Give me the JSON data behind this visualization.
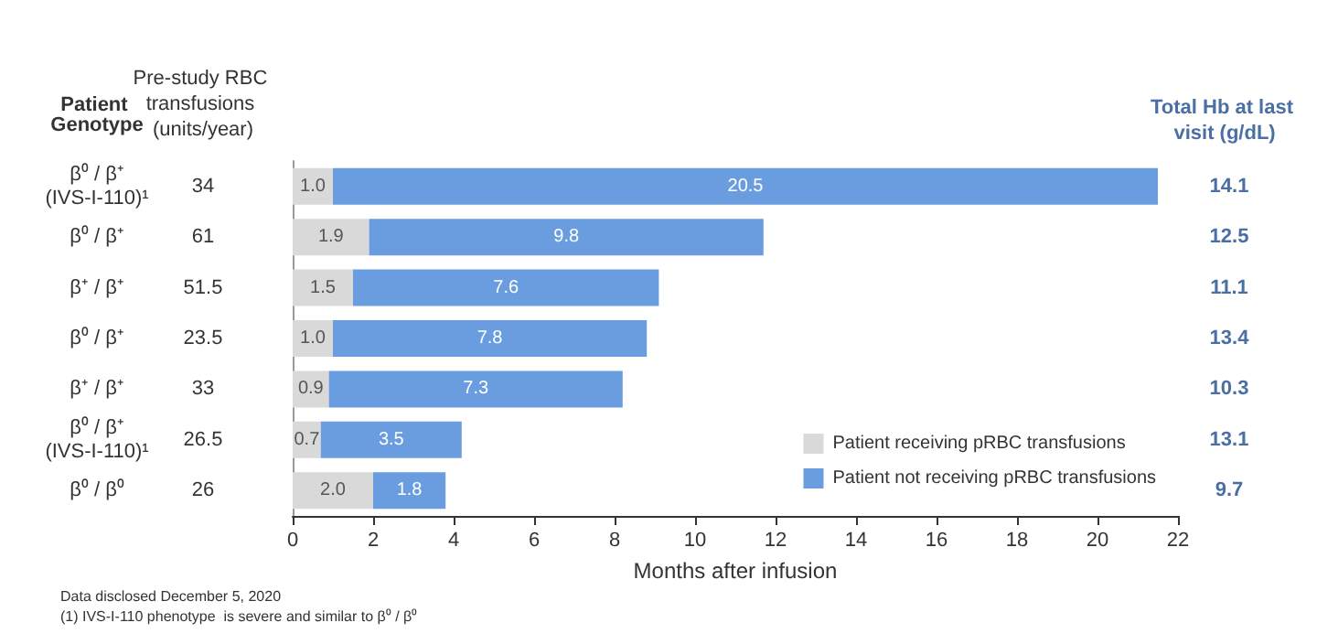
{
  "chart_data": {
    "type": "bar",
    "orientation": "horizontal",
    "stacked": true,
    "ylabel": "Patient Genotype",
    "y2label": "Total Hb at last visit (g/dL)",
    "xlabel": "Months after infusion",
    "categories": [
      "β⁰ / β⁺\n(IVS-I-110)¹",
      "β⁰ / β⁺",
      "β⁺ / β⁺",
      "β⁰ / β⁺",
      "β⁺ / β⁺",
      "β⁰ / β⁺\n(IVS-I-110)¹",
      "β⁰ / β⁰"
    ],
    "y_categories": [
      "34",
      "61",
      "51.5",
      "23.5",
      "33",
      "26.5",
      "26"
    ],
    "y2_categories": [
      "14.1",
      "12.5",
      "11.1",
      "13.4",
      "10.3",
      "13.1",
      "9.7"
    ],
    "series": [
      {
        "name": "Patient receiving pRBC transfusions",
        "color": "#d9d9d9",
        "values": [
          1.0,
          1.9,
          1.5,
          1.0,
          0.9,
          0.7,
          2.0
        ],
        "value_labels": [
          "1.0",
          "1.9",
          "1.5",
          "1.0",
          "0.9",
          "0.7",
          "2.0"
        ]
      },
      {
        "name": "Patient not receiving pRBC transfusions",
        "color": "#6a9de0",
        "values": [
          20.5,
          9.8,
          7.6,
          7.8,
          7.3,
          3.5,
          1.8
        ],
        "value_labels": [
          "20.5",
          "9.8",
          "7.6",
          "7.8",
          "7.3",
          "3.5",
          "1.8"
        ]
      }
    ],
    "xlim": [
      0,
      22
    ],
    "xticks": [
      0,
      2,
      4,
      6,
      8,
      10,
      12,
      14,
      16,
      18,
      20,
      22
    ],
    "legend": "bottom right",
    "annotations": [
      "Pre-study RBC transfusions (units/year)",
      "Data disclosed December 5, 2020",
      "(1) IVS-I-110 phenotype  is severe and similar to β⁰ / β⁰"
    ]
  }
}
